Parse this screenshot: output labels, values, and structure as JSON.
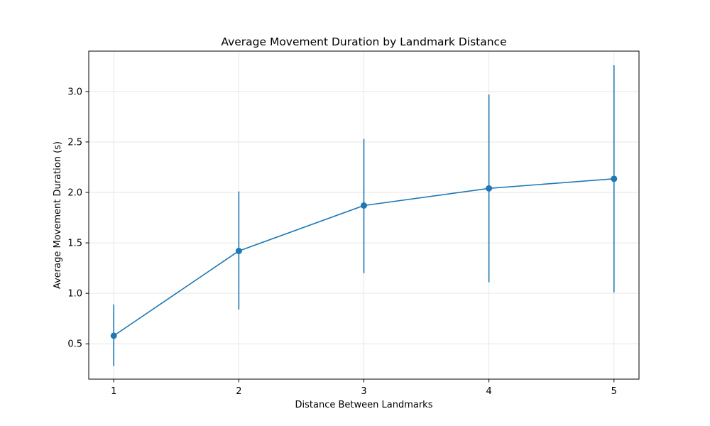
{
  "chart_data": {
    "type": "line",
    "title": "Average Movement Duration by Landmark Distance",
    "xlabel": "Distance Between Landmarks",
    "ylabel": "Average Movement Duration (s)",
    "x": [
      1,
      2,
      3,
      4,
      5
    ],
    "xticks": [
      "1",
      "2",
      "3",
      "4",
      "5"
    ],
    "yticks": [
      "0.5",
      "1.0",
      "1.5",
      "2.0",
      "2.5",
      "3.0"
    ],
    "ytick_values": [
      0.5,
      1.0,
      1.5,
      2.0,
      2.5,
      3.0
    ],
    "xlim": [
      0.8,
      5.2
    ],
    "ylim": [
      0.15,
      3.4
    ],
    "grid": true,
    "series": [
      {
        "values": [
          0.58,
          1.42,
          1.87,
          2.04,
          2.135
        ],
        "error_low": [
          0.28,
          0.84,
          1.2,
          1.11,
          1.01
        ],
        "error_high": [
          0.89,
          2.01,
          2.53,
          2.97,
          3.26
        ],
        "color": "#1f77b4",
        "marker": "circle"
      }
    ]
  }
}
